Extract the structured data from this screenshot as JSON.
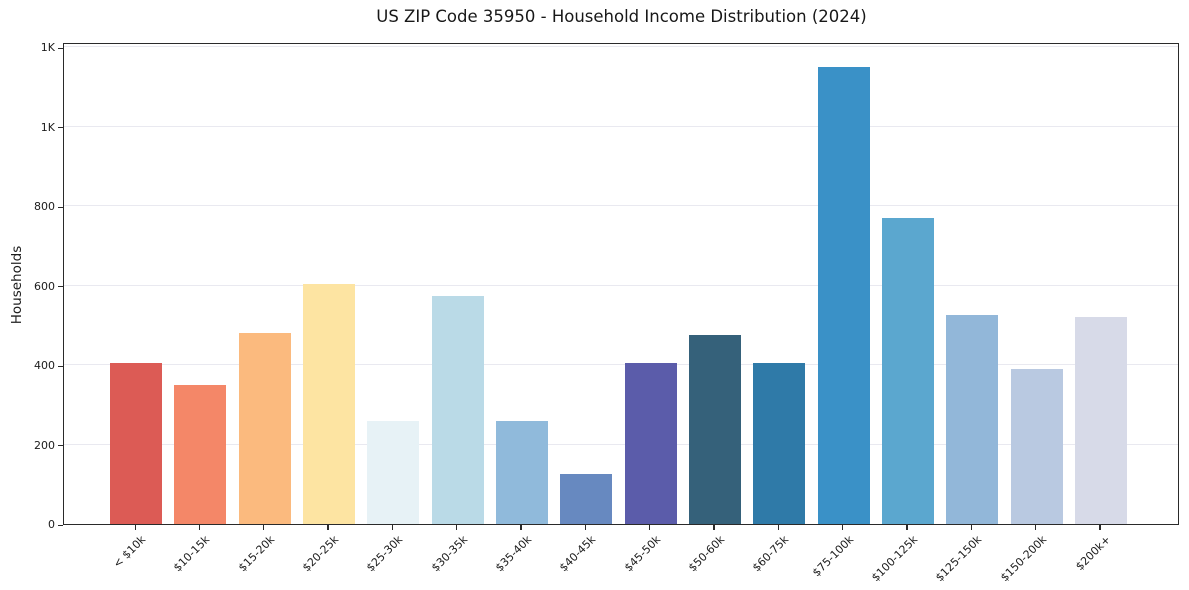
{
  "title": "US ZIP Code 35950 - Household Income Distribution (2024)",
  "chart_data": {
    "type": "bar",
    "title": "US ZIP Code 35950 - Household Income Distribution (2024)",
    "xlabel": "",
    "ylabel": "Households",
    "categories": [
      "< $10k",
      "$10-15k",
      "$15-20k",
      "$20-25k",
      "$25-30k",
      "$30-35k",
      "$35-40k",
      "$40-45k",
      "$45-50k",
      "$50-60k",
      "$60-75k",
      "$75-100k",
      "$100-125k",
      "$125-150k",
      "$150-200k",
      "$200k+"
    ],
    "values": [
      405,
      350,
      480,
      605,
      260,
      575,
      260,
      125,
      405,
      475,
      405,
      1150,
      770,
      525,
      390,
      520
    ],
    "bar_colors": [
      "#dc5b55",
      "#f48768",
      "#fbba7e",
      "#fde4a2",
      "#e7f2f6",
      "#badae7",
      "#90badb",
      "#6789c0",
      "#5b5caa",
      "#35617a",
      "#2f7aa8",
      "#3a91c7",
      "#5ba7cf",
      "#92b7d9",
      "#b9c9e1",
      "#d7dae8"
    ],
    "y_ticks": [
      {
        "value": 0,
        "label": "0"
      },
      {
        "value": 200,
        "label": "200"
      },
      {
        "value": 400,
        "label": "400"
      },
      {
        "value": 600,
        "label": "600"
      },
      {
        "value": 800,
        "label": "800"
      },
      {
        "value": 1000,
        "label": "1K"
      },
      {
        "value": 1200,
        "label": "1K"
      }
    ],
    "ylim": [
      0,
      1213
    ],
    "grid": "horizontal",
    "legend": "none",
    "background": "#ffffff",
    "gridline_color": "#e9e9f0",
    "spine_color": "#2a2a2a"
  }
}
